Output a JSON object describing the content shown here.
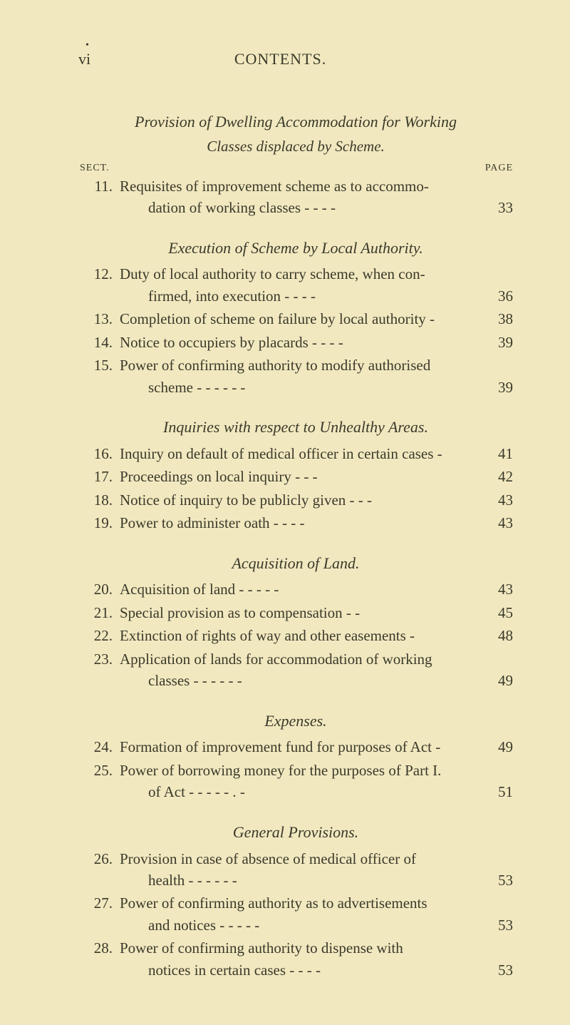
{
  "header": {
    "page_number": "vi",
    "running_head": "CONTENTS."
  },
  "labels": {
    "sect": "SECT.",
    "page": "PAGE"
  },
  "sections": [
    {
      "title": "Provision of Dwelling Accommodation for Working",
      "subtitle": "Classes displaced by Scheme.",
      "show_labels": true,
      "entries": [
        {
          "num": "11.",
          "line1": "Requisites of improvement scheme as to accommo-",
          "line2": "dation of working classes -            -             -          -",
          "page": "33"
        }
      ]
    },
    {
      "title": "Execution of Scheme by Local Authority.",
      "entries": [
        {
          "num": "12.",
          "line1": "Duty of local authority to carry scheme, when con-",
          "line2": "firmed, into execution             -             -           -   -",
          "page": "36"
        },
        {
          "num": "13.",
          "line1": "Completion of scheme on failure by local authority -",
          "page": "38"
        },
        {
          "num": "14.",
          "line1": "Notice to occupiers by placards -            -           -   -",
          "page": "39"
        },
        {
          "num": "15.",
          "line1": "Power of confirming authority to modify authorised",
          "line2": "scheme     -           -           -           -           -         -",
          "page": "39"
        }
      ]
    },
    {
      "title": "Inquiries with respect to Unhealthy Areas.",
      "entries": [
        {
          "num": "16.",
          "line1": "Inquiry on default of medical officer in certain cases -",
          "page": "41"
        },
        {
          "num": "17.",
          "line1": "Proceedings on local inquiry            -           -          -",
          "page": "42"
        },
        {
          "num": "18.",
          "line1": "Notice of inquiry to be publicly given  -           -    -",
          "page": "43"
        },
        {
          "num": "19.",
          "line1": "Power to administer oath    -           -           -          -",
          "page": "43"
        }
      ]
    },
    {
      "title": "Acquisition of Land.",
      "entries": [
        {
          "num": "20.",
          "line1": "Acquisition of land        -           -           -         -   -",
          "page": "43"
        },
        {
          "num": "21.",
          "line1": "Special provision as to compensation          -           -",
          "page": "45"
        },
        {
          "num": "22.",
          "line1": "Extinction of rights of way and other easements     -",
          "page": "48"
        },
        {
          "num": "23.",
          "line1": "Application of lands for accommodation of working",
          "line2": "classes    -         -           -           -           -           -",
          "page": "49"
        }
      ]
    },
    {
      "title": "Expenses.",
      "entries": [
        {
          "num": "24.",
          "line1": "Formation of improvement fund for purposes of Act -",
          "page": "49"
        },
        {
          "num": "25.",
          "line1": "Power of borrowing money for the purposes of Part I.",
          "line2": "of Act     -          -           -           -           -       .  -",
          "page": "51"
        }
      ]
    },
    {
      "title": "General Provisions.",
      "entries": [
        {
          "num": "26.",
          "line1": "Provision in case of absence of medical officer of",
          "line2": "health           -           -           -           -         -   -",
          "page": "53"
        },
        {
          "num": "27.",
          "line1": "Power of confirming authority as to advertisements",
          "line2": "and notices           -          -           -           -          -",
          "page": "53"
        },
        {
          "num": "28.",
          "line1": "Power of confirming authority to dispense with",
          "line2": "notices in certain cases           -           -          -   -",
          "page": "53"
        }
      ]
    }
  ]
}
